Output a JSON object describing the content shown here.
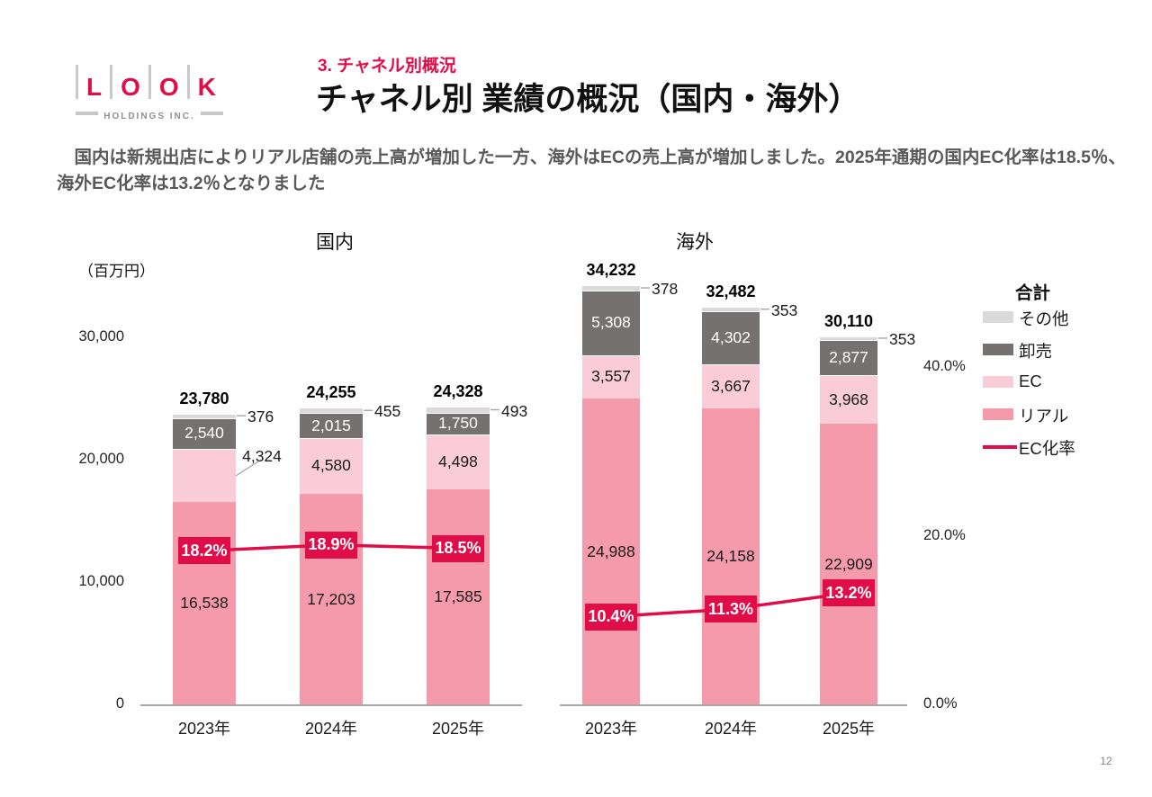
{
  "page": {
    "number": "12"
  },
  "logo": {
    "letters": [
      "L",
      "O",
      "O",
      "K"
    ],
    "subtitle": "HOLDINGS INC."
  },
  "header": {
    "section_label": "3. チャネル別概況",
    "title": "チャネル別 業績の概況（国内・海外）"
  },
  "summary": "　国内は新規出店によりリアル店舗の売上高が増加した一方、海外はECの売上高が増加しました。2025年通期の国内EC化率は18.5％、海外EC化率は13.2％となりました",
  "colors": {
    "accent_red": "#e00d48",
    "real_pink": "#f49aab",
    "ec_pink": "#f9ccd7",
    "wholesale_gray": "#767171",
    "other_gray": "#d9d9d9",
    "axis_gray": "#a6a6a6",
    "summary_gray": "#595959"
  },
  "legend": {
    "title": "合計",
    "items": [
      {
        "key": "other",
        "label": "その他",
        "color": "#d9d9d9",
        "swatch": "box"
      },
      {
        "key": "wholesale",
        "label": "卸売",
        "color": "#767171",
        "swatch": "box"
      },
      {
        "key": "ec",
        "label": "EC",
        "color": "#f9ccd7",
        "swatch": "box"
      },
      {
        "key": "real",
        "label": "リアル",
        "color": "#f49aab",
        "swatch": "box"
      },
      {
        "key": "ec-ratio",
        "label": "EC化率",
        "color": "#e00d48",
        "swatch": "line"
      }
    ]
  },
  "chart_data": [
    {
      "type": "bar",
      "stacked": true,
      "key": "domestic",
      "title": "国内",
      "unit_label": "（百万円）",
      "categories": [
        "2023年",
        "2024年",
        "2025年"
      ],
      "series": [
        {
          "key": "real",
          "name": "リアル",
          "color": "#f49aab",
          "label_color": "#1a1a1a",
          "values": [
            16538,
            17203,
            17585
          ]
        },
        {
          "key": "ec",
          "name": "EC",
          "color": "#f9ccd7",
          "label_color": "#1a1a1a",
          "values": [
            4324,
            4580,
            4498
          ]
        },
        {
          "key": "wholesale",
          "name": "卸売",
          "color": "#767171",
          "label_color": "#ffffff",
          "values": [
            2540,
            2015,
            1750
          ]
        },
        {
          "key": "other",
          "name": "その他",
          "color": "#d9d9d9",
          "label_color": "#1a1a1a",
          "values": [
            376,
            455,
            493
          ]
        }
      ],
      "totals": [
        23780,
        24255,
        24328
      ],
      "line_series": {
        "key": "ec-ratio",
        "name": "EC化率",
        "color": "#e00d48",
        "values_pct": [
          18.2,
          18.9,
          18.5
        ]
      },
      "ylim": [
        0,
        30000
      ],
      "yticks": [
        {
          "label": "0",
          "value": 0
        },
        {
          "label": "10,000",
          "value": 10000
        },
        {
          "label": "20,000",
          "value": 20000
        },
        {
          "label": "30,000",
          "value": 30000
        }
      ],
      "grid": "off"
    },
    {
      "type": "bar",
      "stacked": true,
      "key": "overseas",
      "title": "海外",
      "categories": [
        "2023年",
        "2024年",
        "2025年"
      ],
      "series": [
        {
          "key": "real",
          "name": "リアル",
          "color": "#f49aab",
          "label_color": "#1a1a1a",
          "values": [
            24988,
            24158,
            22909
          ]
        },
        {
          "key": "ec",
          "name": "EC",
          "color": "#f9ccd7",
          "label_color": "#1a1a1a",
          "values": [
            3557,
            3667,
            3968
          ]
        },
        {
          "key": "wholesale",
          "name": "卸売",
          "color": "#767171",
          "label_color": "#ffffff",
          "values": [
            5308,
            4302,
            2877
          ]
        },
        {
          "key": "other",
          "name": "その他",
          "color": "#d9d9d9",
          "label_color": "#1a1a1a",
          "values": [
            378,
            353,
            353
          ]
        }
      ],
      "totals": [
        34232,
        32482,
        30110
      ],
      "line_series": {
        "key": "ec-ratio",
        "name": "EC化率",
        "color": "#e00d48",
        "values_pct": [
          10.4,
          11.3,
          13.2
        ]
      },
      "y2lim": [
        0,
        40
      ],
      "y2ticks": [
        {
          "label": "0.0%",
          "value": 0
        },
        {
          "label": "20.0%",
          "value": 20
        },
        {
          "label": "40.0%",
          "value": 40
        }
      ],
      "grid": "off",
      "legend_position": "right"
    }
  ]
}
